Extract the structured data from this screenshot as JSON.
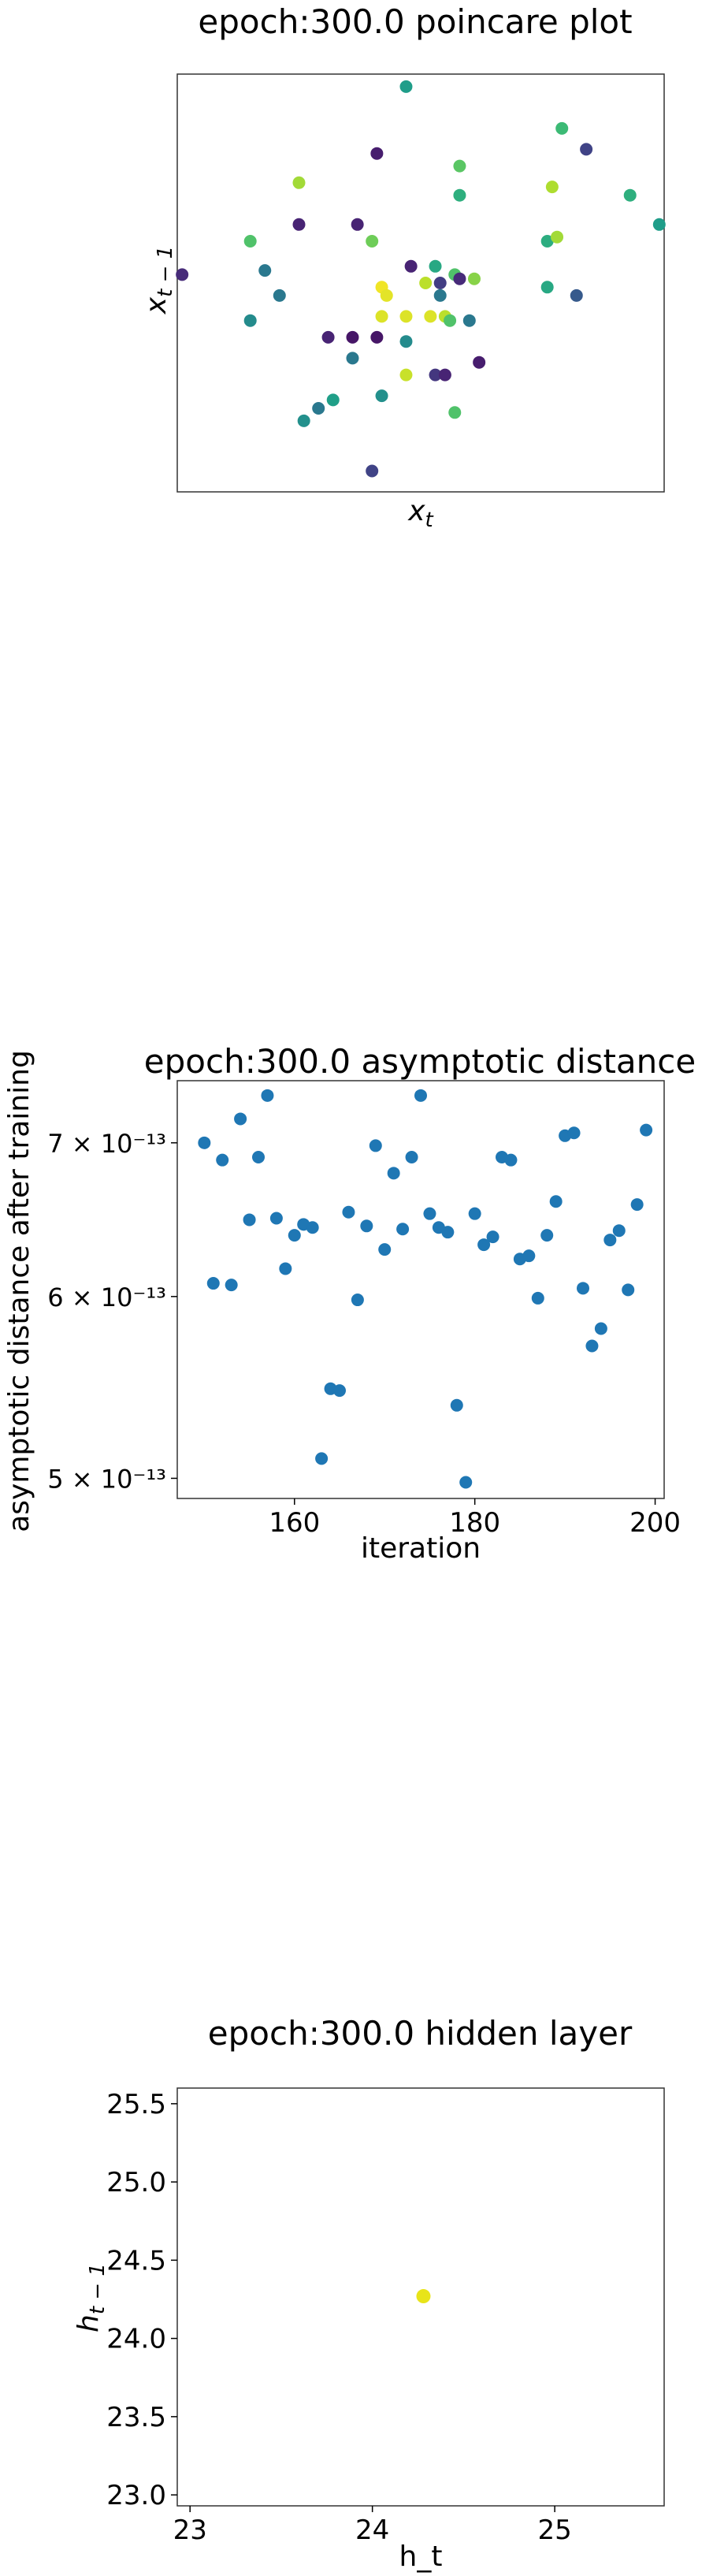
{
  "chart_data": [
    {
      "type": "scatter",
      "title": "epoch:300.0 poincare plot",
      "xlabel": "x_t",
      "ylabel": "x_{t-1}",
      "ticks": "none",
      "colormap": "viridis",
      "points": [
        [
          0.47,
          0.97,
          0.55
        ],
        [
          0.79,
          0.87,
          0.68
        ],
        [
          0.41,
          0.81,
          0.08
        ],
        [
          0.84,
          0.82,
          0.2
        ],
        [
          0.58,
          0.78,
          0.74
        ],
        [
          0.25,
          0.74,
          0.86
        ],
        [
          0.77,
          0.73,
          0.88
        ],
        [
          0.93,
          0.71,
          0.63
        ],
        [
          0.58,
          0.71,
          0.63
        ],
        [
          0.99,
          0.64,
          0.55
        ],
        [
          0.25,
          0.64,
          0.1
        ],
        [
          0.37,
          0.64,
          0.1
        ],
        [
          0.15,
          0.6,
          0.72
        ],
        [
          0.4,
          0.6,
          0.78
        ],
        [
          0.76,
          0.6,
          0.62
        ],
        [
          0.78,
          0.61,
          0.86
        ],
        [
          0.48,
          0.54,
          0.1
        ],
        [
          0.53,
          0.54,
          0.6
        ],
        [
          0.18,
          0.53,
          0.4
        ],
        [
          0.01,
          0.52,
          0.12
        ],
        [
          0.57,
          0.52,
          0.72
        ],
        [
          0.42,
          0.49,
          0.98
        ],
        [
          0.51,
          0.5,
          0.9
        ],
        [
          0.54,
          0.5,
          0.18
        ],
        [
          0.58,
          0.51,
          0.12
        ],
        [
          0.61,
          0.51,
          0.82
        ],
        [
          0.21,
          0.47,
          0.4
        ],
        [
          0.43,
          0.47,
          0.96
        ],
        [
          0.54,
          0.47,
          0.4
        ],
        [
          0.76,
          0.49,
          0.6
        ],
        [
          0.82,
          0.47,
          0.28
        ],
        [
          0.15,
          0.41,
          0.48
        ],
        [
          0.42,
          0.42,
          0.95
        ],
        [
          0.47,
          0.42,
          0.95
        ],
        [
          0.52,
          0.42,
          0.95
        ],
        [
          0.55,
          0.42,
          0.9
        ],
        [
          0.56,
          0.41,
          0.72
        ],
        [
          0.6,
          0.41,
          0.4
        ],
        [
          0.31,
          0.37,
          0.1
        ],
        [
          0.36,
          0.37,
          0.06
        ],
        [
          0.41,
          0.37,
          0.06
        ],
        [
          0.47,
          0.36,
          0.48
        ],
        [
          0.36,
          0.32,
          0.4
        ],
        [
          0.62,
          0.31,
          0.08
        ],
        [
          0.53,
          0.28,
          0.16
        ],
        [
          0.47,
          0.28,
          0.92
        ],
        [
          0.55,
          0.28,
          0.1
        ],
        [
          0.42,
          0.23,
          0.5
        ],
        [
          0.32,
          0.22,
          0.56
        ],
        [
          0.29,
          0.2,
          0.4
        ],
        [
          0.57,
          0.19,
          0.72
        ],
        [
          0.26,
          0.17,
          0.5
        ],
        [
          0.4,
          0.05,
          0.2
        ]
      ]
    },
    {
      "type": "scatter",
      "title": "epoch:300.0 asymptotic distance",
      "xlabel": "iteration",
      "ylabel": "asymptotic distance after training",
      "yscale": "log",
      "xlim": [
        147,
        201
      ],
      "ylim": [
        4.9e-13,
        7.45e-13
      ],
      "xticks": [
        160,
        180,
        200
      ],
      "xtick_labels": [
        "160",
        "180",
        "200"
      ],
      "yticks": [
        5e-13,
        6e-13,
        7e-13
      ],
      "ytick_labels": [
        "5 × 10⁻¹³",
        "6 × 10⁻¹³",
        "7 × 10⁻¹³"
      ],
      "color": "#1f77b4",
      "x": [
        150,
        151,
        152,
        153,
        154,
        155,
        156,
        157,
        158,
        159,
        160,
        161,
        162,
        163,
        164,
        165,
        166,
        167,
        168,
        169,
        170,
        171,
        172,
        173,
        174,
        175,
        176,
        177,
        178,
        179,
        180,
        181,
        182,
        183,
        184,
        185,
        186,
        187,
        188,
        189,
        190,
        191,
        192,
        193,
        194,
        195,
        196,
        197,
        198,
        199
      ],
      "y": [
        7e-13,
        6.08e-13,
        6.88e-13,
        6.07e-13,
        7.17e-13,
        6.48e-13,
        6.9e-13,
        7.34e-13,
        6.49e-13,
        6.17e-13,
        6.38e-13,
        6.45e-13,
        6.43e-13,
        5.1e-13,
        5.47e-13,
        5.46e-13,
        6.53e-13,
        5.98e-13,
        6.44e-13,
        6.98e-13,
        6.29e-13,
        6.79e-13,
        6.42e-13,
        6.9e-13,
        7.34e-13,
        6.52e-13,
        6.43e-13,
        6.4e-13,
        5.38e-13,
        4.98e-13,
        6.52e-13,
        6.32e-13,
        6.37e-13,
        6.9e-13,
        6.88e-13,
        6.23e-13,
        6.25e-13,
        5.99e-13,
        6.38e-13,
        6.6e-13,
        7.05e-13,
        7.07e-13,
        6.05e-13,
        5.71e-13,
        5.81e-13,
        6.35e-13,
        6.41e-13,
        6.04e-13,
        6.58e-13,
        7.09e-13
      ]
    },
    {
      "type": "scatter",
      "title": "epoch:300.0 hidden layer",
      "xlabel": "h_t",
      "ylabel": "h_{t-1}",
      "xlim": [
        22.93,
        25.6
      ],
      "ylim": [
        22.93,
        25.6
      ],
      "xticks": [
        23,
        24,
        25
      ],
      "xtick_labels": [
        "23",
        "24",
        "25"
      ],
      "yticks": [
        23.0,
        23.5,
        24.0,
        24.5,
        25.0,
        25.5
      ],
      "ytick_labels": [
        "23.0",
        "23.5",
        "24.0",
        "24.5",
        "25.0",
        "25.5"
      ],
      "color": "#e8e419",
      "x": [
        24.28
      ],
      "y": [
        24.27
      ]
    }
  ]
}
